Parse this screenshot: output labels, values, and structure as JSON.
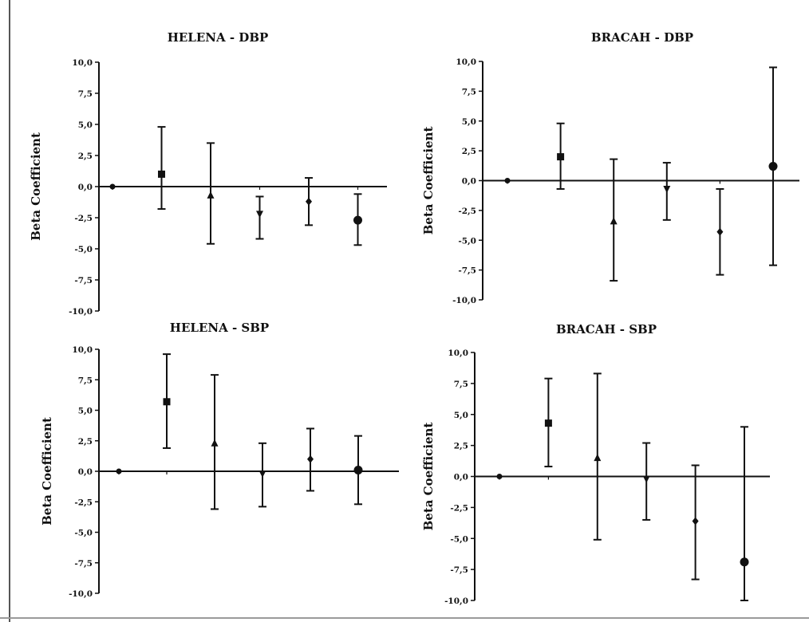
{
  "colors": {
    "ink": "#111111",
    "background": "#ffffff",
    "frame": "#555555"
  },
  "chart_data": [
    {
      "type": "scatter",
      "title": "HELENA - DBP",
      "ylabel": "Beta Coefficient",
      "xlabel": "",
      "ylim": [
        -10,
        10
      ],
      "yticks": [
        "10,0",
        "7,5",
        "5,0",
        "2,5",
        "0,0",
        "-2,5",
        "-5,0",
        "-7,5",
        "-10,0"
      ],
      "points": [
        {
          "estimate": 0.0,
          "lower": 0.0,
          "upper": 0.0,
          "marker": "circle-small"
        },
        {
          "estimate": 1.0,
          "lower": -1.8,
          "upper": 4.8,
          "marker": "square"
        },
        {
          "estimate": -0.7,
          "lower": -4.6,
          "upper": 3.5,
          "marker": "triangle-up"
        },
        {
          "estimate": -2.2,
          "lower": -4.2,
          "upper": -0.8,
          "marker": "triangle-down"
        },
        {
          "estimate": -1.2,
          "lower": -3.1,
          "upper": 0.7,
          "marker": "diamond"
        },
        {
          "estimate": -2.7,
          "lower": -4.7,
          "upper": -0.6,
          "marker": "circle"
        }
      ]
    },
    {
      "type": "scatter",
      "title": "BRACAH - DBP",
      "ylabel": "Beta Coefficient",
      "xlabel": "",
      "ylim": [
        -10,
        10
      ],
      "yticks": [
        "10,0",
        "7,5",
        "5,0",
        "2,5",
        "0,0",
        "-2,5",
        "-5,0",
        "-7,5",
        "-10,0"
      ],
      "points": [
        {
          "estimate": 0.0,
          "lower": 0.0,
          "upper": 0.0,
          "marker": "circle-small"
        },
        {
          "estimate": 2.0,
          "lower": -0.7,
          "upper": 4.8,
          "marker": "square"
        },
        {
          "estimate": -3.4,
          "lower": -8.4,
          "upper": 1.8,
          "marker": "triangle-up"
        },
        {
          "estimate": -0.7,
          "lower": -3.3,
          "upper": 1.5,
          "marker": "triangle-down"
        },
        {
          "estimate": -4.3,
          "lower": -7.9,
          "upper": -0.7,
          "marker": "diamond"
        },
        {
          "estimate": 1.2,
          "lower": -7.1,
          "upper": 9.5,
          "marker": "circle"
        }
      ]
    },
    {
      "type": "scatter",
      "title": "HELENA - SBP",
      "ylabel": "Beta Coefficient",
      "xlabel": "",
      "ylim": [
        -10,
        10
      ],
      "yticks": [
        "10,0",
        "7,5",
        "5,0",
        "2,5",
        "0,0",
        "-2,5",
        "-5,0",
        "-7,5",
        "-10,0"
      ],
      "points": [
        {
          "estimate": 0.0,
          "lower": 0.0,
          "upper": 0.0,
          "marker": "circle-small"
        },
        {
          "estimate": 5.7,
          "lower": 1.9,
          "upper": 9.6,
          "marker": "square"
        },
        {
          "estimate": 2.3,
          "lower": -3.1,
          "upper": 7.9,
          "marker": "triangle-up"
        },
        {
          "estimate": -0.2,
          "lower": -2.9,
          "upper": 2.3,
          "marker": "triangle-down"
        },
        {
          "estimate": 1.0,
          "lower": -1.6,
          "upper": 3.5,
          "marker": "diamond"
        },
        {
          "estimate": 0.1,
          "lower": -2.7,
          "upper": 2.9,
          "marker": "circle"
        }
      ]
    },
    {
      "type": "scatter",
      "title": "BRACAH - SBP",
      "ylabel": "Beta Coefficient",
      "xlabel": "",
      "ylim": [
        -10,
        10
      ],
      "yticks": [
        "10,0",
        "7,5",
        "5,0",
        "2,5",
        "0,0",
        "-2,5",
        "-5,0",
        "-7,5",
        "-10,0"
      ],
      "points": [
        {
          "estimate": 0.0,
          "lower": 0.0,
          "upper": 0.0,
          "marker": "circle-small"
        },
        {
          "estimate": 4.3,
          "lower": 0.8,
          "upper": 7.9,
          "marker": "square"
        },
        {
          "estimate": 1.5,
          "lower": -5.1,
          "upper": 8.3,
          "marker": "triangle-up"
        },
        {
          "estimate": -0.2,
          "lower": -3.5,
          "upper": 2.7,
          "marker": "triangle-down"
        },
        {
          "estimate": -3.6,
          "lower": -8.3,
          "upper": 0.9,
          "marker": "diamond"
        },
        {
          "estimate": -6.9,
          "lower": -10.0,
          "upper": 4.0,
          "marker": "circle"
        }
      ]
    }
  ]
}
